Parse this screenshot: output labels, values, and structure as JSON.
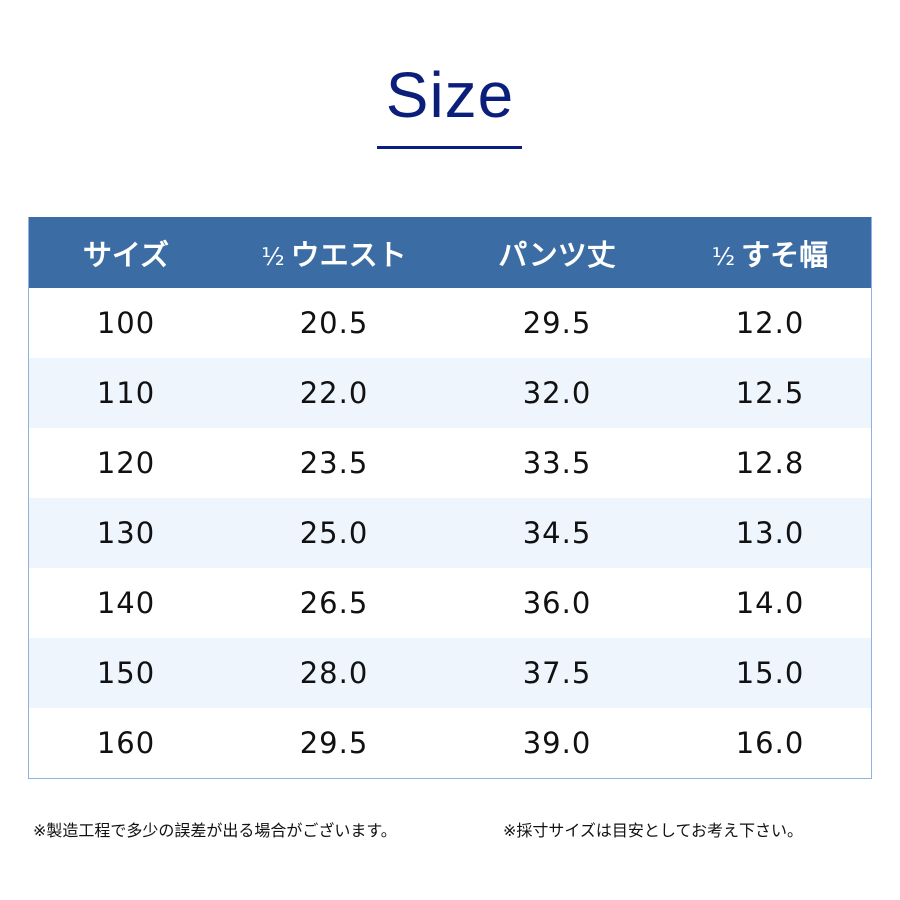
{
  "title": "Size",
  "accent_color": "#0b1f7a",
  "header_color": "#3b6da4",
  "table": {
    "headers": [
      {
        "prefix": "",
        "label": "サイズ"
      },
      {
        "prefix": "½",
        "label": "ウエスト"
      },
      {
        "prefix": "",
        "label": "パンツ丈"
      },
      {
        "prefix": "½",
        "label": "すそ幅"
      }
    ],
    "rows": [
      [
        "100",
        "20.5",
        "29.5",
        "12.0"
      ],
      [
        "110",
        "22.0",
        "32.0",
        "12.5"
      ],
      [
        "120",
        "23.5",
        "33.5",
        "12.8"
      ],
      [
        "130",
        "25.0",
        "34.5",
        "13.0"
      ],
      [
        "140",
        "26.5",
        "36.0",
        "14.0"
      ],
      [
        "150",
        "28.0",
        "37.5",
        "15.0"
      ],
      [
        "160",
        "29.5",
        "39.0",
        "16.0"
      ]
    ]
  },
  "notes": [
    "※製造工程で多少の誤差が出る場合がございます。",
    "※採寸サイズは目安としてお考え下さい。"
  ]
}
